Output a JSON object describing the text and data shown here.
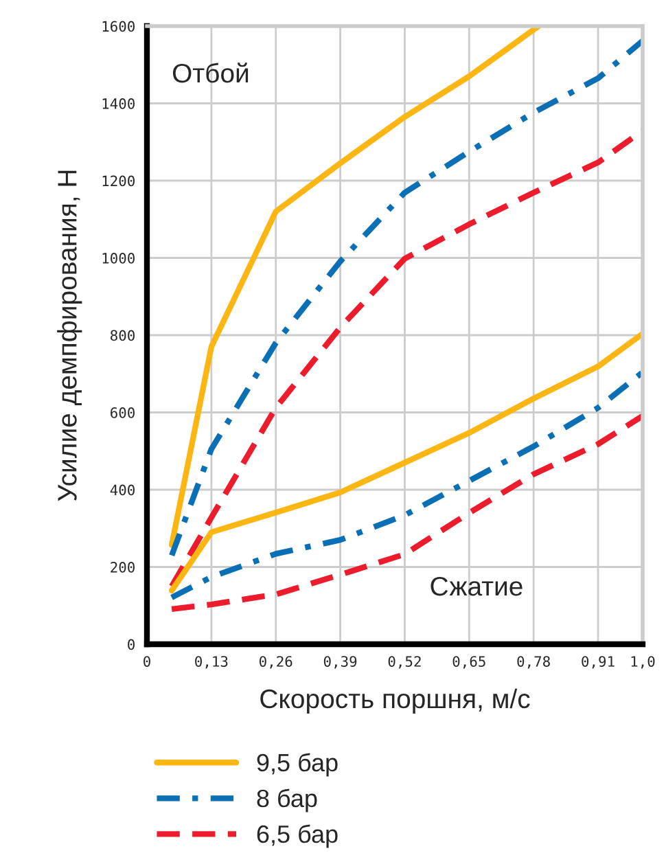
{
  "chart_data": {
    "type": "line",
    "xlabel": "Скорость поршня, м/с",
    "ylabel": "Усилие демпфирования, Н",
    "xlim": [
      0,
      1.0
    ],
    "ylim": [
      0,
      1600
    ],
    "xticks": [
      0,
      {
        "value": 0.13,
        "label": "0,13"
      },
      {
        "value": 0.26,
        "label": "0,26"
      },
      {
        "value": 0.39,
        "label": "0,39"
      },
      {
        "value": 0.52,
        "label": "0,52"
      },
      {
        "value": 0.65,
        "label": "0,65"
      },
      {
        "value": 0.78,
        "label": "0,78"
      },
      {
        "value": 0.91,
        "label": "0,91"
      },
      {
        "value": 1.0,
        "label": "1,0"
      }
    ],
    "yticks": [
      0,
      200,
      400,
      600,
      800,
      1000,
      1200,
      1400,
      1600
    ],
    "grid": true,
    "legend": "bottom",
    "marker": "none",
    "annotations": [
      "Отбой",
      "Сжатие"
    ],
    "series": [
      {
        "name": "9,5 бар",
        "color": "#fbb614",
        "line_style": "solid",
        "x": [
          0.05,
          0.13,
          0.26,
          0.39,
          0.52,
          0.65,
          0.79
        ],
        "values": [
          257,
          770,
          1120,
          1245,
          1365,
          1470,
          1600
        ]
      },
      {
        "name": "8 бар",
        "color": "#0a6fb4",
        "line_style": "dashdot",
        "x": [
          0.05,
          0.13,
          0.26,
          0.39,
          0.52,
          0.65,
          0.78,
          0.91,
          1.0
        ],
        "values": [
          230,
          505,
          780,
          991,
          1169,
          1275,
          1376,
          1465,
          1562
        ]
      },
      {
        "name": "6,5 бар",
        "color": "#ec1c2d",
        "line_style": "dashed",
        "x": [
          0.05,
          0.13,
          0.26,
          0.39,
          0.52,
          0.65,
          0.78,
          0.91,
          1.0
        ],
        "values": [
          150,
          328,
          612,
          820,
          998,
          1087,
          1169,
          1247,
          1329
        ]
      },
      {
        "color": "#fbb614",
        "line_style": "solid",
        "x": [
          0.05,
          0.13,
          0.26,
          0.39,
          0.52,
          0.65,
          0.78,
          0.91,
          1.0
        ],
        "values": [
          139,
          290,
          341,
          393,
          470,
          547,
          636,
          719,
          804
        ]
      },
      {
        "color": "#0a6fb4",
        "line_style": "dashdot",
        "x": [
          0.05,
          0.13,
          0.26,
          0.39,
          0.52,
          0.65,
          0.78,
          0.91,
          1.0
        ],
        "values": [
          121,
          174,
          234,
          270,
          334,
          423,
          512,
          612,
          704
        ]
      },
      {
        "color": "#ec1c2d",
        "line_style": "dashed",
        "x": [
          0.05,
          0.13,
          0.26,
          0.39,
          0.52,
          0.65,
          0.78,
          0.91,
          1.0
        ],
        "values": [
          91,
          103,
          129,
          180,
          233,
          340,
          440,
          518,
          591
        ]
      }
    ]
  }
}
